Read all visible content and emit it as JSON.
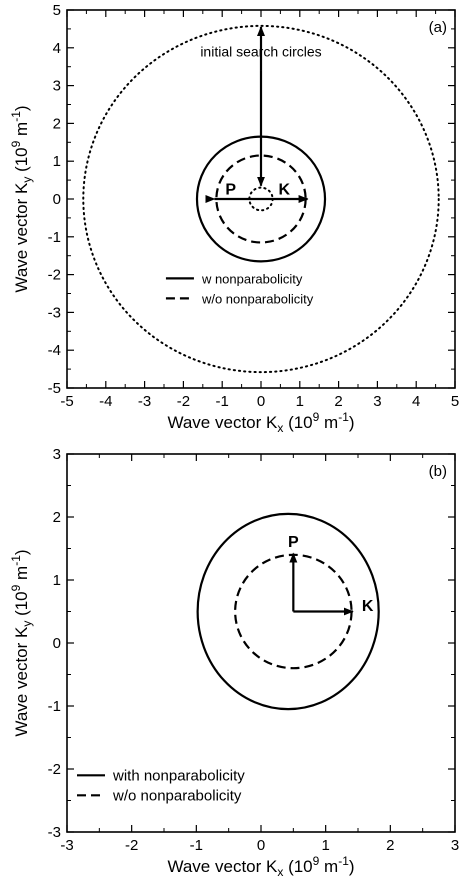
{
  "chart_data": [
    {
      "type": "line",
      "panel_label": "(a)",
      "xlabel": {
        "prefix": "Wave vector K",
        "sub": "x",
        "unit_open": " (10",
        "sup1": "9",
        "unit_mid": " m",
        "sup2": "-1",
        "unit_close": ")"
      },
      "ylabel": {
        "prefix": "Wave vector K",
        "sub": "y",
        "unit_open": " (10",
        "sup1": "9",
        "unit_mid": " m",
        "sup2": "-1",
        "unit_close": ")"
      },
      "xlim": [
        -5,
        5
      ],
      "ylim": [
        -5,
        5
      ],
      "xticks": [
        "-5",
        "-4",
        "-3",
        "-2",
        "-1",
        "0",
        "1",
        "2",
        "3",
        "4",
        "5"
      ],
      "yticks": [
        "-5",
        "-4",
        "-3",
        "-2",
        "-1",
        "0",
        "1",
        "2",
        "3",
        "4",
        "5"
      ],
      "series": [
        {
          "name": "w nonparabolicity",
          "style": "solid",
          "shape": "circle",
          "center": [
            0,
            0
          ],
          "radius": 1.65
        },
        {
          "name": "w/o nonparabolicity",
          "style": "dashed",
          "shape": "circle",
          "center": [
            0,
            0
          ],
          "radius": 1.15
        },
        {
          "name": "",
          "style": "dotted",
          "shape": "circle",
          "center": [
            0,
            0
          ],
          "radius": 4.58
        },
        {
          "name": "",
          "style": "dotted",
          "shape": "circle",
          "center": [
            0,
            0
          ],
          "radius": 0.3
        }
      ],
      "annotations": {
        "text": "initial search circles",
        "text_pos": [
          0,
          3.9
        ],
        "arrows": [
          {
            "from": [
              0,
              3.4
            ],
            "to": [
              0,
              4.55
            ]
          },
          {
            "from": [
              0,
              3.4
            ],
            "to": [
              0,
              0.35
            ]
          }
        ],
        "double_arrow": {
          "from": [
            -1.2,
            0
          ],
          "to": [
            1.2,
            0
          ]
        },
        "point_labels": [
          {
            "text": "P",
            "pos": [
              -0.78,
              0.28
            ]
          },
          {
            "text": "K",
            "pos": [
              0.6,
              0.28
            ]
          }
        ]
      },
      "legend": "lower-center"
    },
    {
      "type": "line",
      "panel_label": "(b)",
      "xlabel": {
        "prefix": "Wave vector K",
        "sub": "x",
        "unit_open": " (10",
        "sup1": "9",
        "unit_mid": " m",
        "sup2": "-1",
        "unit_close": ")"
      },
      "ylabel": {
        "prefix": "Wave vector K",
        "sub": "y",
        "unit_open": " (10",
        "sup1": "9",
        "unit_mid": " m",
        "sup2": "-1",
        "unit_close": ")"
      },
      "xlim": [
        -3,
        3
      ],
      "ylim": [
        -3,
        3
      ],
      "xticks": [
        "-3",
        "-2",
        "-1",
        "0",
        "1",
        "2",
        "3"
      ],
      "yticks": [
        "-3",
        "-2",
        "-1",
        "0",
        "1",
        "2",
        "3"
      ],
      "series": [
        {
          "name": "with nonparabolicity",
          "style": "solid",
          "shape": "ellipse",
          "center": [
            0.42,
            0.5
          ],
          "rx": 1.4,
          "ry": 1.55
        },
        {
          "name": "w/o nonparabolicity",
          "style": "dashed",
          "shape": "circle",
          "center": [
            0.5,
            0.5
          ],
          "radius": 0.9
        }
      ],
      "annotations": {
        "origin": [
          0.5,
          0.5
        ],
        "arrows": [
          {
            "from": [
              0.5,
              0.5
            ],
            "to": [
              0.5,
              1.42
            ]
          },
          {
            "from": [
              0.5,
              0.5
            ],
            "to": [
              1.42,
              0.5
            ]
          }
        ],
        "point_labels": [
          {
            "text": "P",
            "pos": [
              0.5,
              1.62
            ]
          },
          {
            "text": "K",
            "pos": [
              1.65,
              0.6
            ]
          }
        ]
      },
      "legend": "lower-left"
    }
  ]
}
